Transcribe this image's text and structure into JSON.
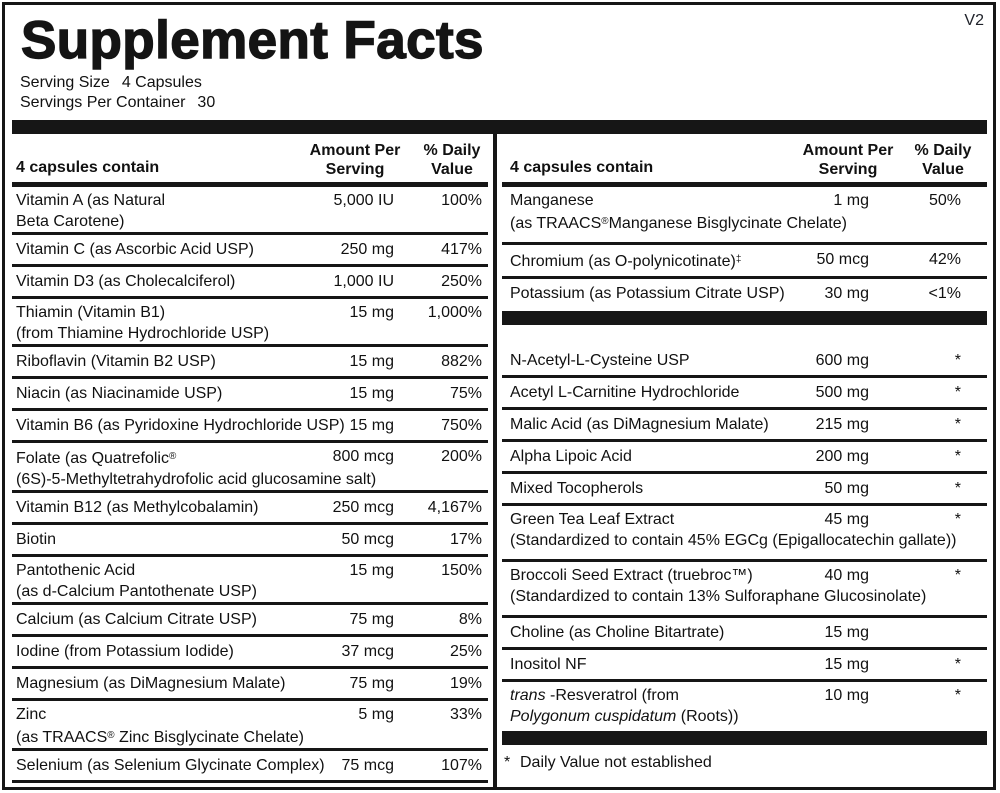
{
  "meta": {
    "version_tag": "V2"
  },
  "title": "Supplement Facts",
  "serving_info": {
    "serving_size_label": "Serving Size",
    "serving_size_value": "4 Capsules",
    "servings_per_container_label": "Servings Per Container",
    "servings_per_container_value": "30"
  },
  "table": {
    "header": {
      "contain": "4 capsules contain",
      "amount_line1": "Amount Per",
      "amount_line2": "Serving",
      "dv_line1": "% Daily",
      "dv_line2": "Value"
    },
    "left_rows": [
      {
        "name": "Vitamin A (as Natural",
        "name2": "Beta Carotene)",
        "amount": "5,000 IU",
        "dv": "100%"
      },
      {
        "name": "Vitamin C (as Ascorbic Acid USP)",
        "amount": "250 mg",
        "dv": "417%"
      },
      {
        "name": "Vitamin D3 (as Cholecalciferol)",
        "amount": "1,000 IU",
        "dv": "250%"
      },
      {
        "name": "Thiamin (Vitamin B1)",
        "name2": "(from Thiamine Hydrochloride USP)",
        "amount": "15 mg",
        "dv": "1,000%"
      },
      {
        "name": "Riboflavin (Vitamin B2 USP)",
        "amount": "15 mg",
        "dv": "882%"
      },
      {
        "name": "Niacin (as Niacinamide USP)",
        "amount": "15 mg",
        "dv": "75%"
      },
      {
        "name": "Vitamin B6 (as Pyridoxine Hydrochloride USP)",
        "amount": "15 mg",
        "dv": "750%"
      },
      {
        "name": "Folate (as Quatrefolic®",
        "name2": "(6S)-5-Methyltetrahydrofolic acid glucosamine salt)",
        "amount": "800 mcg",
        "dv": "200%"
      },
      {
        "name": "Vitamin B12 (as Methylcobalamin)",
        "amount": "250 mcg",
        "dv": "4,167%"
      },
      {
        "name": "Biotin",
        "amount": "50 mcg",
        "dv": "17%"
      },
      {
        "name": "Pantothenic Acid",
        "name2": "(as d-Calcium Pantothenate USP)",
        "amount": "15 mg",
        "dv": "150%"
      },
      {
        "name": "Calcium (as Calcium Citrate USP)",
        "amount": "75 mg",
        "dv": "8%"
      },
      {
        "name": "Iodine (from Potassium Iodide)",
        "amount": "37 mcg",
        "dv": "25%"
      },
      {
        "name": "Magnesium (as DiMagnesium Malate)",
        "amount": "75 mg",
        "dv": "19%"
      },
      {
        "name": "Zinc",
        "name2": "(as TRAACS® Zinc Bisglycinate Chelate)",
        "amount": "5 mg",
        "dv": "33%"
      },
      {
        "name": "Selenium (as Selenium Glycinate Complex)",
        "amount": "75 mcg",
        "dv": "107%"
      }
    ],
    "right_mineral_rows": [
      {
        "name": "Manganese",
        "name2": "(as TRAACS®Manganese Bisglycinate Chelate)",
        "amount": "1 mg",
        "dv": "50%"
      },
      {
        "name": "Chromium (as O-polynicotinate)‡",
        "amount": "50 mcg",
        "dv": "42%"
      },
      {
        "name": "Potassium (as Potassium Citrate USP)",
        "amount": "30 mg",
        "dv": "<1%"
      }
    ],
    "right_other_rows": [
      {
        "name": "N-Acetyl-L-Cysteine USP",
        "amount": "600 mg",
        "dv": "*"
      },
      {
        "name": "Acetyl L-Carnitine Hydrochloride",
        "amount": "500 mg",
        "dv": "*"
      },
      {
        "name": "Malic Acid (as DiMagnesium Malate)",
        "amount": "215 mg",
        "dv": "*"
      },
      {
        "name": "Alpha Lipoic Acid",
        "amount": "200 mg",
        "dv": "*"
      },
      {
        "name": "Mixed Tocopherols",
        "amount": "50 mg",
        "dv": "*"
      },
      {
        "name": "Green Tea Leaf Extract",
        "name2": "(Standardized to contain 45% EGCg (Epigallocatechin gallate))",
        "amount": "45 mg",
        "dv": "*"
      },
      {
        "name": "Broccoli Seed Extract (truebroc™)",
        "name2": "(Standardized to contain 13% Sulforaphane Glucosinolate)",
        "amount": "40 mg",
        "dv": "*"
      },
      {
        "name": "Choline (as Choline Bitartrate)",
        "amount": "15 mg",
        "dv": ""
      },
      {
        "name": "Inositol NF",
        "amount": "15 mg",
        "dv": "*"
      },
      {
        "name_italic": "trans",
        "name_rest": " -Resveratrol (from",
        "name2_italic": "Polygonum cuspidatum",
        "name2_rest": " (Roots))",
        "amount": "10 mg",
        "dv": "*"
      }
    ],
    "footnote_symbol": "*",
    "footnote_text": "Daily Value not established"
  },
  "colors": {
    "ink": "#111111",
    "background": "#ffffff"
  }
}
